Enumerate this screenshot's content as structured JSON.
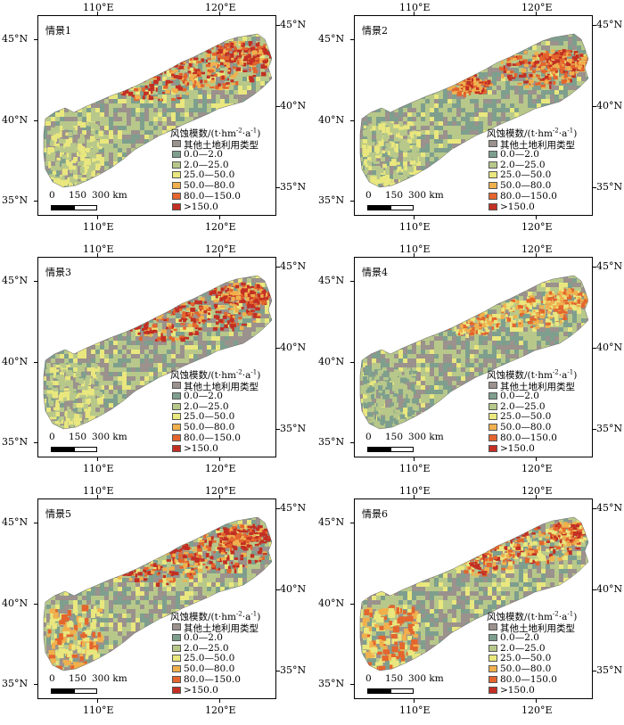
{
  "lon_ticks": [
    "110°E",
    "120°E"
  ],
  "lat_ticks_left": [
    "45°N",
    "40°N",
    "35°N"
  ],
  "lat_ticks_right": [
    "45°N",
    "40°N",
    "35°N"
  ],
  "legend": {
    "title": "风蚀模数/(t·hm",
    "title_sup1": "-2",
    "title_mid": "·a",
    "title_sup2": "-1",
    "title_end": ")",
    "items": [
      {
        "label": "其他土地利用类型",
        "color": "#9b918d"
      },
      {
        "label": "0.0—2.0",
        "color": "#7e9f8e"
      },
      {
        "label": "2.0—25.0",
        "color": "#b7c88a"
      },
      {
        "label": "25.0—50.0",
        "color": "#e9e77e"
      },
      {
        "label": "50.0—80.0",
        "color": "#f0b04d"
      },
      {
        "label": "80.0—150.0",
        "color": "#e4652d"
      },
      {
        "label": ">150.0",
        "color": "#c32f23"
      }
    ]
  },
  "scale": {
    "labels": [
      "0",
      "150",
      "300 km"
    ]
  },
  "panels": [
    {
      "title": "情景1",
      "mix": {
        "other": 0.25,
        "low": 0.25,
        "mid": 0.35,
        "yellow": 0.15
      },
      "hot": "ne-strong",
      "west": "yellow"
    },
    {
      "title": "情景2",
      "mix": {
        "other": 0.2,
        "low": 0.3,
        "mid": 0.4,
        "yellow": 0.1
      },
      "hot": "central-strong",
      "west": "yellow"
    },
    {
      "title": "情景3",
      "mix": {
        "other": 0.35,
        "low": 0.2,
        "mid": 0.3,
        "yellow": 0.15
      },
      "hot": "ne-strong",
      "west": "yellow"
    },
    {
      "title": "情景4",
      "mix": {
        "other": 0.3,
        "low": 0.25,
        "mid": 0.35,
        "yellow": 0.1
      },
      "hot": "central-orange",
      "west": "green"
    },
    {
      "title": "情景5",
      "mix": {
        "other": 0.3,
        "low": 0.2,
        "mid": 0.35,
        "yellow": 0.15
      },
      "hot": "ne-strong",
      "west": "orange"
    },
    {
      "title": "情景6",
      "mix": {
        "other": 0.25,
        "low": 0.25,
        "mid": 0.35,
        "yellow": 0.15
      },
      "hot": "ne-medium",
      "west": "orange"
    }
  ]
}
